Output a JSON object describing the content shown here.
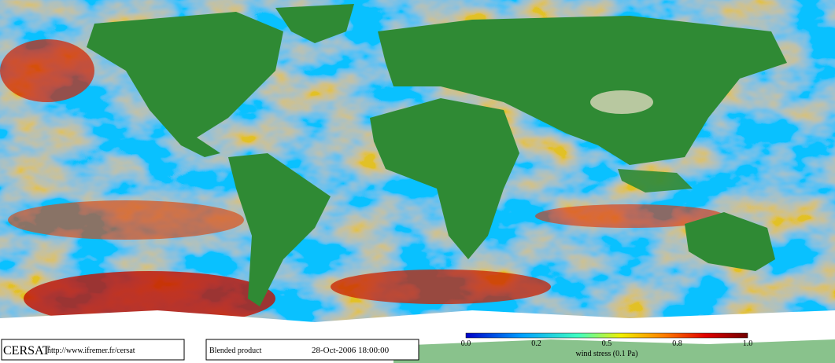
{
  "credit": {
    "logo": "CERSAT",
    "url": "http://www.ifremer.fr/cersat"
  },
  "product": "Blended product",
  "timestamp": "28-Oct-2006 18:00:00",
  "colorbar": {
    "label": "wind stress (0.1 Pa)",
    "ticks": [
      "0.0",
      "0.2",
      "0.5",
      "0.8",
      "1.0"
    ]
  }
}
